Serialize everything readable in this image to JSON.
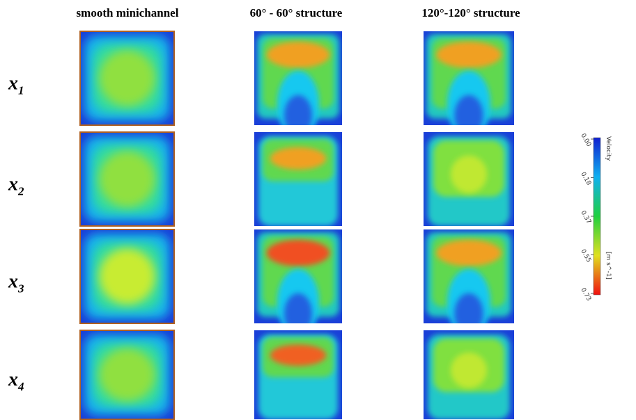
{
  "header": {
    "columns": [
      "smooth minichannel",
      "60° - 60° structure",
      "120°-120° structure"
    ]
  },
  "rows": [
    {
      "var": "x",
      "sub": "1"
    },
    {
      "var": "x",
      "sub": "2"
    },
    {
      "var": "x",
      "sub": "3"
    },
    {
      "var": "x",
      "sub": "4"
    }
  ],
  "colorbar": {
    "title": "Velocity",
    "unit": "[m s^-1]",
    "ticks": [
      "0.00",
      "0.18",
      "0.37",
      "0.55",
      "0.73"
    ]
  }
}
